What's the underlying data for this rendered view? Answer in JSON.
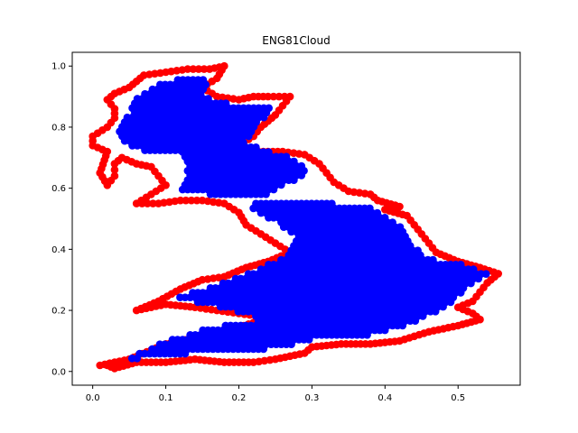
{
  "chart_data": {
    "type": "scatter",
    "title": "ENG81Cloud",
    "xlabel": "",
    "ylabel": "",
    "xlim": [
      -0.028,
      0.585
    ],
    "ylim": [
      -0.045,
      1.045
    ],
    "xticks": [
      0.0,
      0.1,
      0.2,
      0.3,
      0.4,
      0.5
    ],
    "xtick_labels": [
      "0.0",
      "0.1",
      "0.2",
      "0.3",
      "0.4",
      "0.5"
    ],
    "yticks": [
      0.0,
      0.2,
      0.4,
      0.6,
      0.8,
      1.0
    ],
    "ytick_labels": [
      "0.0",
      "0.2",
      "0.4",
      "0.6",
      "0.8",
      "1.0"
    ],
    "grid": false,
    "series": [
      {
        "role": "boundary",
        "color": "#ff0000",
        "points": [
          [
            0.0,
            0.77
          ],
          [
            0.02,
            0.8
          ],
          [
            0.03,
            0.83
          ],
          [
            0.03,
            0.86
          ],
          [
            0.02,
            0.89
          ],
          [
            0.03,
            0.91
          ],
          [
            0.05,
            0.93
          ],
          [
            0.06,
            0.95
          ],
          [
            0.07,
            0.97
          ],
          [
            0.1,
            0.98
          ],
          [
            0.13,
            0.99
          ],
          [
            0.16,
            0.99
          ],
          [
            0.18,
            1.0
          ],
          [
            0.17,
            0.96
          ],
          [
            0.15,
            0.93
          ],
          [
            0.17,
            0.9
          ],
          [
            0.2,
            0.89
          ],
          [
            0.22,
            0.9
          ],
          [
            0.24,
            0.9
          ],
          [
            0.27,
            0.9
          ],
          [
            0.26,
            0.87
          ],
          [
            0.25,
            0.84
          ],
          [
            0.23,
            0.8
          ],
          [
            0.22,
            0.77
          ],
          [
            0.2,
            0.74
          ],
          [
            0.22,
            0.72
          ],
          [
            0.26,
            0.72
          ],
          [
            0.29,
            0.71
          ],
          [
            0.31,
            0.68
          ],
          [
            0.32,
            0.65
          ],
          [
            0.33,
            0.62
          ],
          [
            0.35,
            0.59
          ],
          [
            0.38,
            0.58
          ],
          [
            0.39,
            0.56
          ],
          [
            0.42,
            0.54
          ],
          [
            0.4,
            0.53
          ],
          [
            0.43,
            0.51
          ],
          [
            0.44,
            0.48
          ],
          [
            0.45,
            0.45
          ],
          [
            0.46,
            0.42
          ],
          [
            0.47,
            0.39
          ],
          [
            0.5,
            0.36
          ],
          [
            0.53,
            0.34
          ],
          [
            0.555,
            0.32
          ],
          [
            0.54,
            0.29
          ],
          [
            0.53,
            0.26
          ],
          [
            0.52,
            0.23
          ],
          [
            0.5,
            0.21
          ],
          [
            0.52,
            0.19
          ],
          [
            0.53,
            0.17
          ],
          [
            0.5,
            0.15
          ],
          [
            0.46,
            0.13
          ],
          [
            0.42,
            0.1
          ],
          [
            0.38,
            0.09
          ],
          [
            0.34,
            0.09
          ],
          [
            0.3,
            0.08
          ],
          [
            0.29,
            0.06
          ],
          [
            0.25,
            0.04
          ],
          [
            0.22,
            0.03
          ],
          [
            0.18,
            0.03
          ],
          [
            0.14,
            0.04
          ],
          [
            0.1,
            0.03
          ],
          [
            0.06,
            0.03
          ],
          [
            0.03,
            0.01
          ],
          [
            0.02,
            0.02
          ],
          [
            0.01,
            0.02
          ],
          [
            0.03,
            0.03
          ],
          [
            0.05,
            0.04
          ],
          [
            0.08,
            0.07
          ],
          [
            0.1,
            0.09
          ],
          [
            0.14,
            0.11
          ],
          [
            0.18,
            0.13
          ],
          [
            0.22,
            0.16
          ],
          [
            0.26,
            0.17
          ],
          [
            0.23,
            0.18
          ],
          [
            0.2,
            0.19
          ],
          [
            0.17,
            0.2
          ],
          [
            0.14,
            0.21
          ],
          [
            0.1,
            0.22
          ],
          [
            0.08,
            0.21
          ],
          [
            0.06,
            0.2
          ],
          [
            0.09,
            0.23
          ],
          [
            0.12,
            0.27
          ],
          [
            0.15,
            0.3
          ],
          [
            0.18,
            0.31
          ],
          [
            0.21,
            0.34
          ],
          [
            0.24,
            0.36
          ],
          [
            0.27,
            0.39
          ],
          [
            0.25,
            0.42
          ],
          [
            0.23,
            0.45
          ],
          [
            0.21,
            0.48
          ],
          [
            0.2,
            0.52
          ],
          [
            0.18,
            0.55
          ],
          [
            0.15,
            0.56
          ],
          [
            0.12,
            0.56
          ],
          [
            0.09,
            0.55
          ],
          [
            0.06,
            0.55
          ],
          [
            0.08,
            0.58
          ],
          [
            0.1,
            0.61
          ],
          [
            0.09,
            0.64
          ],
          [
            0.08,
            0.67
          ],
          [
            0.06,
            0.68
          ],
          [
            0.04,
            0.7
          ],
          [
            0.03,
            0.68
          ],
          [
            0.03,
            0.64
          ],
          [
            0.02,
            0.61
          ],
          [
            0.01,
            0.65
          ],
          [
            0.02,
            0.72
          ],
          [
            0.0,
            0.74
          ]
        ]
      },
      {
        "role": "interior",
        "color": "#0000ff",
        "regions": [
          [
            [
              0.03,
              0.78
            ],
            [
              0.05,
              0.84
            ],
            [
              0.06,
              0.9
            ],
            [
              0.1,
              0.95
            ],
            [
              0.16,
              0.97
            ],
            [
              0.15,
              0.9
            ],
            [
              0.2,
              0.87
            ],
            [
              0.25,
              0.87
            ],
            [
              0.23,
              0.82
            ],
            [
              0.21,
              0.76
            ],
            [
              0.18,
              0.73
            ],
            [
              0.14,
              0.71
            ],
            [
              0.1,
              0.72
            ],
            [
              0.07,
              0.72
            ],
            [
              0.05,
              0.74
            ]
          ],
          [
            [
              0.11,
              0.76
            ],
            [
              0.13,
              0.66
            ],
            [
              0.12,
              0.59
            ],
            [
              0.16,
              0.58
            ],
            [
              0.22,
              0.57
            ],
            [
              0.27,
              0.55
            ],
            [
              0.33,
              0.55
            ],
            [
              0.38,
              0.54
            ],
            [
              0.42,
              0.48
            ],
            [
              0.44,
              0.41
            ],
            [
              0.46,
              0.37
            ],
            [
              0.51,
              0.35
            ],
            [
              0.54,
              0.32
            ],
            [
              0.51,
              0.27
            ],
            [
              0.49,
              0.22
            ],
            [
              0.44,
              0.16
            ],
            [
              0.38,
              0.12
            ],
            [
              0.31,
              0.11
            ],
            [
              0.26,
              0.08
            ],
            [
              0.2,
              0.06
            ],
            [
              0.14,
              0.06
            ],
            [
              0.08,
              0.05
            ],
            [
              0.04,
              0.03
            ],
            [
              0.09,
              0.09
            ],
            [
              0.14,
              0.13
            ],
            [
              0.2,
              0.16
            ],
            [
              0.24,
              0.17
            ],
            [
              0.16,
              0.22
            ],
            [
              0.11,
              0.24
            ],
            [
              0.18,
              0.29
            ],
            [
              0.22,
              0.33
            ],
            [
              0.26,
              0.37
            ],
            [
              0.28,
              0.44
            ],
            [
              0.25,
              0.49
            ],
            [
              0.21,
              0.54
            ],
            [
              0.26,
              0.61
            ],
            [
              0.3,
              0.65
            ],
            [
              0.27,
              0.7
            ],
            [
              0.22,
              0.74
            ],
            [
              0.18,
              0.77
            ],
            [
              0.14,
              0.78
            ]
          ]
        ]
      }
    ]
  }
}
